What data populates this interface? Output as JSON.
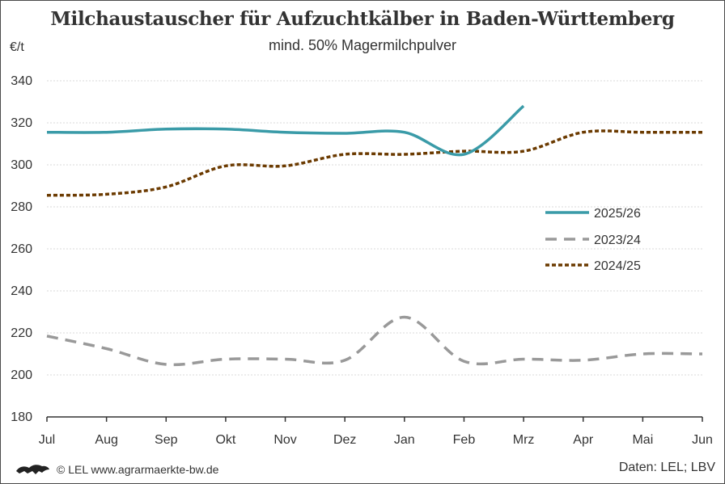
{
  "chart_data": {
    "type": "line",
    "title": "Milchaustauscher für Aufzuchtkälber in Baden-Württemberg",
    "subtitle": "mind. 50% Magermilchpulver",
    "ylabel": "€/t",
    "ylim": [
      180,
      340
    ],
    "yticks": [
      180,
      200,
      220,
      240,
      260,
      280,
      300,
      320,
      340
    ],
    "categories": [
      "Jul",
      "Aug",
      "Sep",
      "Okt",
      "Nov",
      "Dez",
      "Jan",
      "Feb",
      "Mrz",
      "Apr",
      "Mai",
      "Jun"
    ],
    "grid": true,
    "legend_position": "right-center",
    "series": [
      {
        "name": "2025/26",
        "style": "solid",
        "color": "#3a9ba8",
        "values": [
          315.5,
          315.5,
          317,
          317,
          315.5,
          315,
          315.5,
          305,
          328,
          null,
          null,
          null
        ]
      },
      {
        "name": "2023/24",
        "style": "dashed",
        "color": "#999999",
        "values": [
          218.5,
          212.5,
          205,
          207.5,
          207.5,
          207,
          227.5,
          206.5,
          207.5,
          207,
          210,
          210
        ]
      },
      {
        "name": "2024/25",
        "style": "dotted",
        "color": "#6b3a00",
        "values": [
          285.5,
          286,
          289.5,
          299.5,
          299.5,
          305,
          305,
          306.5,
          306.5,
          315.5,
          315.5,
          315.5
        ]
      }
    ]
  },
  "footer": {
    "copyright": "© LEL www.agrarmaerkte-bw.de",
    "source": "Daten: LEL; LBV"
  }
}
